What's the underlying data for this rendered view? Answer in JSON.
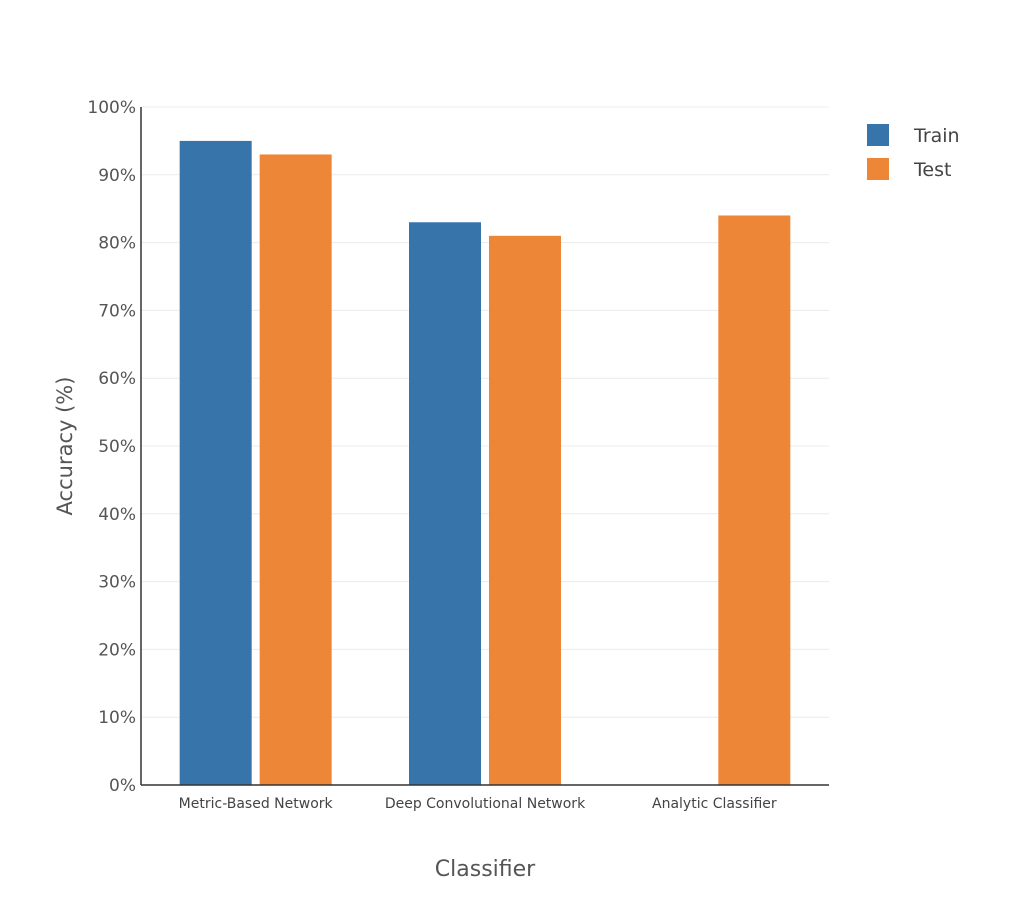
{
  "chart_data": {
    "type": "bar",
    "categories": [
      "Metric-Based Network",
      "Deep Convolutional Network",
      "Analytic Classifier"
    ],
    "series": [
      {
        "name": "Train",
        "color": "#3774aa",
        "values": [
          95,
          83,
          null
        ]
      },
      {
        "name": "Test",
        "color": "#ee8637",
        "values": [
          93,
          81,
          84
        ]
      }
    ],
    "title": "",
    "xlabel": "Classifier",
    "ylabel": "Accuracy (%)",
    "ylim": [
      0,
      100
    ],
    "yticks": [
      "0%",
      "10%",
      "20%",
      "30%",
      "40%",
      "50%",
      "60%",
      "70%",
      "80%",
      "90%",
      "100%"
    ],
    "grid": true,
    "legend_position": "top-right"
  }
}
